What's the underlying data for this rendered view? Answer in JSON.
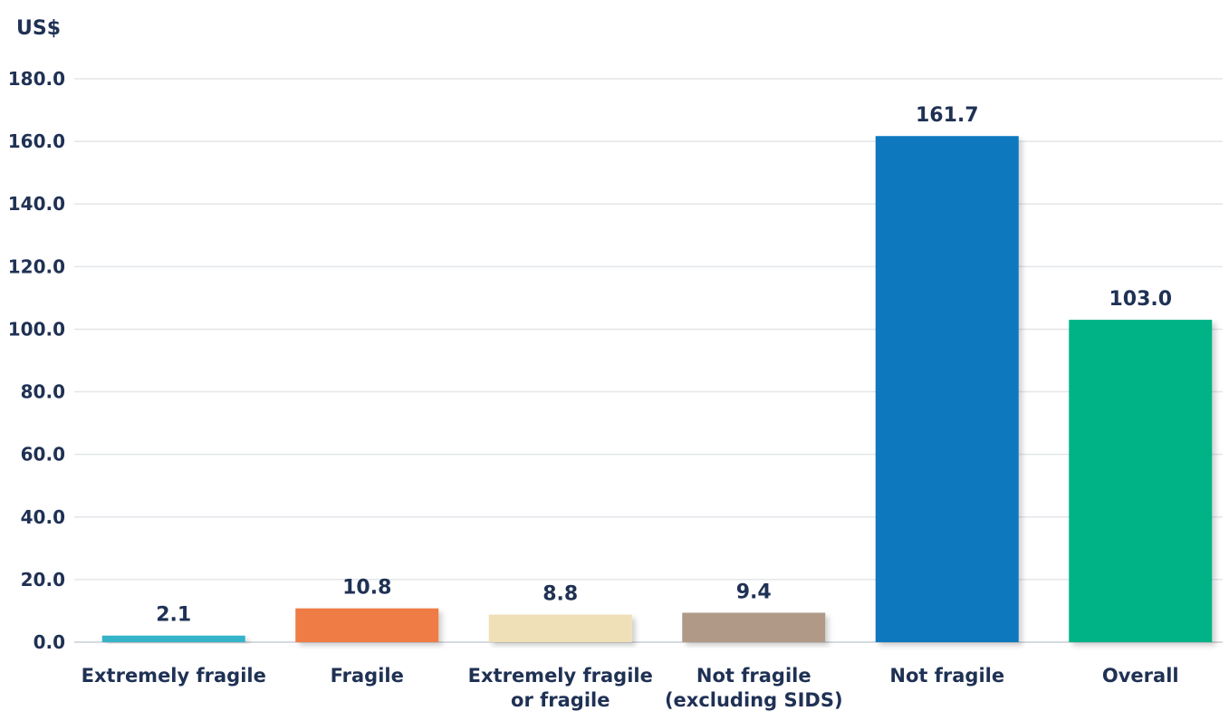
{
  "chart_data": {
    "type": "bar",
    "title": "",
    "xlabel": "",
    "ylabel": "US$",
    "ylim": [
      0,
      180
    ],
    "yticks": [
      "0.0",
      "20.0",
      "40.0",
      "60.0",
      "80.0",
      "100.0",
      "120.0",
      "140.0",
      "160.0",
      "180.0"
    ],
    "grid": true,
    "categories": [
      [
        "Extremely fragile"
      ],
      [
        "Fragile"
      ],
      [
        "Extremely fragile",
        "or fragile"
      ],
      [
        "Not fragile",
        "(excluding SIDS)"
      ],
      [
        "Not fragile"
      ],
      [
        "Overall"
      ]
    ],
    "values": [
      2.1,
      10.8,
      8.8,
      9.4,
      161.7,
      103.0
    ],
    "value_labels": [
      "2.1",
      "10.8",
      "8.8",
      "9.4",
      "161.7",
      "103.0"
    ],
    "colors": [
      "#34b3c9",
      "#f07b45",
      "#efe0b8",
      "#b09a87",
      "#0a78be",
      "#00b386"
    ]
  }
}
